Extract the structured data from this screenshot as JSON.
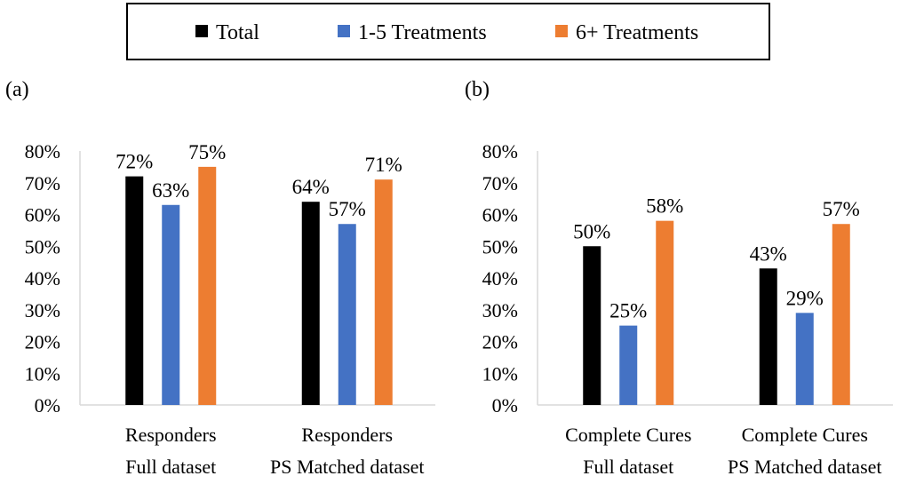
{
  "legend": [
    {
      "label": "Total",
      "color": "#000000"
    },
    {
      "label": "1-5 Treatments",
      "color": "#4472c4"
    },
    {
      "label": "6+ Treatments",
      "color": "#ed7d31"
    }
  ],
  "chart_data": [
    {
      "type": "bar",
      "panel": "(a)",
      "categories": [
        [
          "Responders",
          "Full dataset"
        ],
        [
          "Responders",
          "PS Matched dataset"
        ]
      ],
      "series": [
        {
          "name": "Total",
          "color": "#000000",
          "values": [
            72,
            64
          ],
          "labels": [
            "72%",
            "64%"
          ]
        },
        {
          "name": "1-5 Treatments",
          "color": "#4472c4",
          "values": [
            63,
            57
          ],
          "labels": [
            "63%",
            "57%"
          ]
        },
        {
          "name": "6+ Treatments",
          "color": "#ed7d31",
          "values": [
            75,
            71
          ],
          "labels": [
            "75%",
            "71%"
          ]
        }
      ],
      "yticks": [
        "0%",
        "10%",
        "20%",
        "30%",
        "40%",
        "50%",
        "60%",
        "70%",
        "80%"
      ],
      "ylim": [
        0,
        80
      ],
      "grid": false
    },
    {
      "type": "bar",
      "panel": "(b)",
      "categories": [
        [
          "Complete Cures",
          "Full dataset"
        ],
        [
          "Complete Cures",
          "PS Matched dataset"
        ]
      ],
      "series": [
        {
          "name": "Total",
          "color": "#000000",
          "values": [
            50,
            43
          ],
          "labels": [
            "50%",
            "43%"
          ]
        },
        {
          "name": "1-5 Treatments",
          "color": "#4472c4",
          "values": [
            25,
            29
          ],
          "labels": [
            "25%",
            "29%"
          ]
        },
        {
          "name": "6+ Treatments",
          "color": "#ed7d31",
          "values": [
            58,
            57
          ],
          "labels": [
            "58%",
            "57%"
          ]
        }
      ],
      "yticks": [
        "0%",
        "10%",
        "20%",
        "30%",
        "40%",
        "50%",
        "60%",
        "70%",
        "80%"
      ],
      "ylim": [
        0,
        80
      ],
      "grid": false
    }
  ]
}
